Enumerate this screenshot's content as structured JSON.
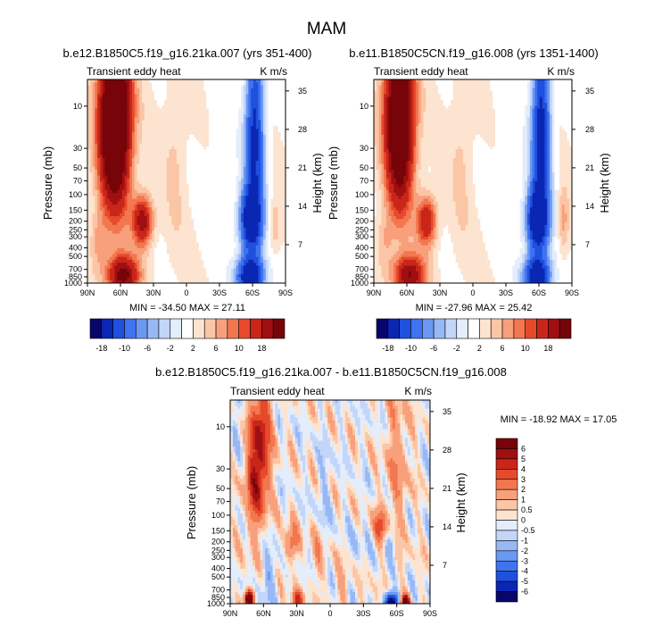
{
  "figure": {
    "title": "MAM"
  },
  "palettes": {
    "top": [
      "#08066b",
      "#0a27b3",
      "#1f50de",
      "#3f73f0",
      "#6b98f2",
      "#98b8f5",
      "#c3d6f9",
      "#e3edfc",
      "#ffffff",
      "#fde4d0",
      "#fbc6a6",
      "#f8a07c",
      "#f2774f",
      "#e64a2b",
      "#c9261a",
      "#a00f12",
      "#760408"
    ],
    "bottom": [
      "#08066b",
      "#0a27b3",
      "#1f50de",
      "#3f73f0",
      "#6b98f2",
      "#98b8f5",
      "#c3d6f9",
      "#e3edfc",
      "#fde4d0",
      "#fbc6a6",
      "#f8a07c",
      "#f2774f",
      "#e64a2b",
      "#c9261a",
      "#a00f12",
      "#760408"
    ]
  },
  "chart_data": [
    {
      "type": "heatmap",
      "id": "panel1",
      "title": "b.e12.B1850C5.f19_g16.21ka.007 (yrs 351-400)",
      "left_label": "Transient eddy heat",
      "right_label": "K m/s",
      "ylabel": "Pressure (mb)",
      "ylabel_right": "Height (km)",
      "x_ticks": [
        "90N",
        "60N",
        "30N",
        "0",
        "30S",
        "60S",
        "90S"
      ],
      "y_ticks": [
        "10",
        "30",
        "50",
        "70",
        "100",
        "150",
        "200",
        "250",
        "300",
        "400",
        "500",
        "700",
        "850",
        "1000"
      ],
      "y_tick_values": [
        10,
        30,
        50,
        70,
        100,
        150,
        200,
        250,
        300,
        400,
        500,
        700,
        850,
        1000
      ],
      "y_right_ticks": [
        "35",
        "28",
        "21",
        "14",
        "7"
      ],
      "y_right_values": [
        35,
        28,
        21,
        14,
        7
      ],
      "min_max_text": "MIN = -34.50  MAX = 27.11",
      "variant": "a",
      "features": [
        {
          "lat": 65,
          "p": 10,
          "amp": 30,
          "slat": 14,
          "sp": 0.85
        },
        {
          "lat": 65,
          "p": 45,
          "amp": 12,
          "slat": 13,
          "sp": 0.7
        },
        {
          "lat": 40,
          "p": 200,
          "amp": 17,
          "slat": 9,
          "sp": 0.28
        },
        {
          "lat": 58,
          "p": 820,
          "amp": 20,
          "slat": 14,
          "sp": 0.22
        },
        {
          "lat": 80,
          "p": 350,
          "amp": 5,
          "slat": 8,
          "sp": 0.35
        },
        {
          "lat": 10,
          "p": 30,
          "amp": 2.5,
          "slat": 10,
          "sp": 1.1
        },
        {
          "lat": -62,
          "p": 10,
          "amp": -15,
          "slat": 8,
          "sp": 0.95
        },
        {
          "lat": -62,
          "p": 60,
          "amp": -9,
          "slat": 10,
          "sp": 0.8
        },
        {
          "lat": -58,
          "p": 200,
          "amp": -22,
          "slat": 10,
          "sp": 0.35
        },
        {
          "lat": -58,
          "p": 850,
          "amp": -26,
          "slat": 12,
          "sp": 0.22
        },
        {
          "lat": -80,
          "p": 230,
          "amp": 4,
          "slat": 5,
          "sp": 0.3
        },
        {
          "lat": -30,
          "p": 40,
          "amp": -1.5,
          "slat": 14,
          "sp": 1.2
        }
      ]
    },
    {
      "type": "heatmap",
      "id": "panel2",
      "title": "b.e11.B1850C5CN.f19_g16.008 (yrs 1351-1400)",
      "left_label": "Transient eddy heat",
      "right_label": "K m/s",
      "ylabel": "Pressure (mb)",
      "ylabel_right": "Height (km)",
      "x_ticks": [
        "90N",
        "60N",
        "30N",
        "0",
        "30S",
        "60S",
        "90S"
      ],
      "y_ticks": [
        "10",
        "30",
        "50",
        "70",
        "100",
        "150",
        "200",
        "250",
        "300",
        "400",
        "500",
        "700",
        "850",
        "1000"
      ],
      "y_tick_values": [
        10,
        30,
        50,
        70,
        100,
        150,
        200,
        250,
        300,
        400,
        500,
        700,
        850,
        1000
      ],
      "y_right_ticks": [
        "35",
        "28",
        "21",
        "14",
        "7"
      ],
      "y_right_values": [
        35,
        28,
        21,
        14,
        7
      ],
      "min_max_text": "MIN = -27.96  MAX = 25.42",
      "variant": "b",
      "features": [
        {
          "lat": 67,
          "p": 10,
          "amp": 26,
          "slat": 13,
          "sp": 0.85
        },
        {
          "lat": 66,
          "p": 45,
          "amp": 10,
          "slat": 12,
          "sp": 0.7
        },
        {
          "lat": 42,
          "p": 200,
          "amp": 14,
          "slat": 9,
          "sp": 0.28
        },
        {
          "lat": 58,
          "p": 820,
          "amp": 18,
          "slat": 14,
          "sp": 0.22
        },
        {
          "lat": 80,
          "p": 350,
          "amp": 4,
          "slat": 8,
          "sp": 0.35
        },
        {
          "lat": 10,
          "p": 30,
          "amp": 2.5,
          "slat": 10,
          "sp": 1.1
        },
        {
          "lat": -62,
          "p": 10,
          "amp": -16,
          "slat": 8,
          "sp": 0.95
        },
        {
          "lat": -62,
          "p": 60,
          "amp": -10,
          "slat": 10,
          "sp": 0.8
        },
        {
          "lat": -58,
          "p": 200,
          "amp": -22,
          "slat": 10,
          "sp": 0.35
        },
        {
          "lat": -58,
          "p": 850,
          "amp": -24,
          "slat": 12,
          "sp": 0.22
        },
        {
          "lat": -82,
          "p": 200,
          "amp": 5,
          "slat": 5,
          "sp": 0.35
        },
        {
          "lat": -30,
          "p": 40,
          "amp": -1.5,
          "slat": 14,
          "sp": 1.2
        }
      ]
    },
    {
      "type": "heatmap",
      "id": "panel3",
      "title": "b.e12.B1850C5.f19_g16.21ka.007 - b.e11.B1850C5CN.f19_g16.008",
      "left_label": "Transient eddy heat",
      "right_label": "K m/s",
      "ylabel": "Pressure (mb)",
      "ylabel_right": "Height (km)",
      "x_ticks": [
        "90N",
        "60N",
        "30N",
        "0",
        "30S",
        "60S",
        "90S"
      ],
      "y_ticks": [
        "10",
        "30",
        "50",
        "70",
        "100",
        "150",
        "200",
        "250",
        "300",
        "400",
        "500",
        "700",
        "850",
        "1000"
      ],
      "y_tick_values": [
        10,
        30,
        50,
        70,
        100,
        150,
        200,
        250,
        300,
        400,
        500,
        700,
        850,
        1000
      ],
      "y_right_ticks": [
        "35",
        "28",
        "21",
        "14",
        "7"
      ],
      "y_right_values": [
        35,
        28,
        21,
        14,
        7
      ],
      "min_max_text": "MIN = -18.92  MAX = 17.05",
      "variant": "c",
      "features": [
        {
          "lat": 62,
          "p": 12,
          "amp": 4.5,
          "slat": 9,
          "sp": 0.7
        },
        {
          "lat": 68,
          "p": 45,
          "amp": 3.5,
          "slat": 9,
          "sp": 0.55
        },
        {
          "lat": 35,
          "p": 210,
          "amp": 3.0,
          "slat": 6,
          "sp": 0.2
        },
        {
          "lat": 73,
          "p": 900,
          "amp": 10,
          "slat": 4,
          "sp": 0.1
        },
        {
          "lat": 30,
          "p": 900,
          "amp": 4,
          "slat": 5,
          "sp": 0.1
        },
        {
          "lat": -60,
          "p": 25,
          "amp": 1.8,
          "slat": 10,
          "sp": 0.9
        },
        {
          "lat": -45,
          "p": 130,
          "amp": 3.0,
          "slat": 6,
          "sp": 0.2
        },
        {
          "lat": -55,
          "p": 950,
          "amp": -8,
          "slat": 6,
          "sp": 0.1
        },
        {
          "lat": -68,
          "p": 960,
          "amp": 9,
          "slat": 3.5,
          "sp": 0.08
        },
        {
          "lat": 12,
          "p": 300,
          "amp": 1.3,
          "slat": 6,
          "sp": 0.35
        },
        {
          "lat": 5,
          "p": 50,
          "amp": -0.8,
          "slat": 8,
          "sp": 0.5
        },
        {
          "lat": -25,
          "p": 200,
          "amp": -0.7,
          "slat": 6,
          "sp": 0.3
        },
        {
          "lat": -55,
          "p": 200,
          "amp": -1.8,
          "slat": 5,
          "sp": 0.2
        },
        {
          "lat": 55,
          "p": 500,
          "amp": -1.5,
          "slat": 8,
          "sp": 0.3
        },
        {
          "lat": 85,
          "p": 8,
          "amp": -0.8,
          "slat": 4,
          "sp": 0.5
        },
        {
          "lat": -10,
          "p": 700,
          "amp": 1.2,
          "slat": 6,
          "sp": 0.25
        }
      ]
    }
  ],
  "colorbars": [
    {
      "id": "cb1",
      "labels": [
        "-18",
        "-10",
        "-6",
        "-2",
        "2",
        "6",
        "10",
        "18"
      ]
    },
    {
      "id": "cb2",
      "labels": [
        "-18",
        "-10",
        "-6",
        "-2",
        "2",
        "6",
        "10",
        "18"
      ]
    },
    {
      "id": "cb3",
      "labels": [
        "6",
        "5",
        "4",
        "3",
        "2",
        "1",
        "0.5",
        "0",
        "-0.5",
        "-1",
        "-2",
        "-3",
        "-4",
        "-5",
        "-6"
      ]
    }
  ]
}
